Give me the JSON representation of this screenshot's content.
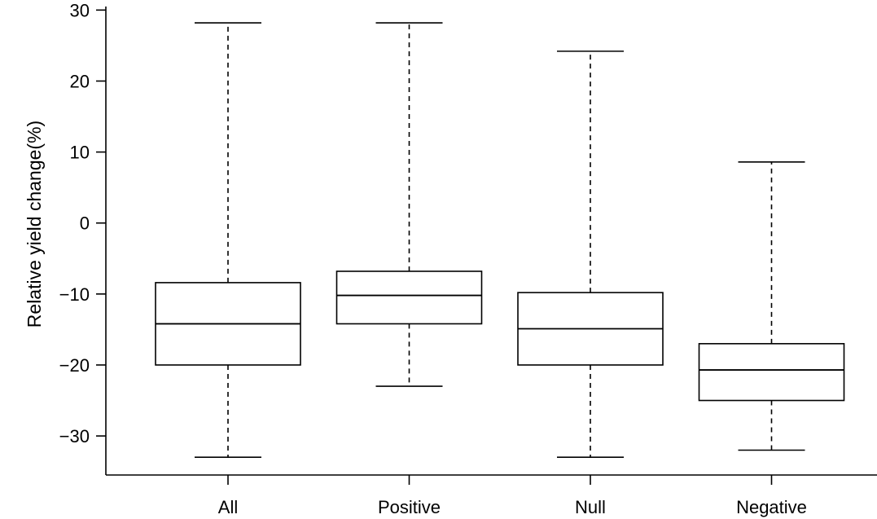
{
  "chart_data": {
    "type": "boxplot",
    "title": "",
    "xlabel": "",
    "ylabel": "Relative yield change(%)",
    "ylim": [
      -35.5,
      30.5
    ],
    "yticks": [
      -30,
      -20,
      -10,
      0,
      10,
      20,
      30
    ],
    "ytick_labels": [
      "−30",
      "−20",
      "−10",
      "0",
      "10",
      "20",
      "30"
    ],
    "grid": false,
    "categories": [
      "All",
      "Positive",
      "Null",
      "Negative"
    ],
    "boxes": [
      {
        "category": "All",
        "whisker_low": -33,
        "q1": -20,
        "median": -14.2,
        "q3": -8.4,
        "whisker_high": 28.2
      },
      {
        "category": "Positive",
        "whisker_low": -23,
        "q1": -14.2,
        "median": -10.2,
        "q3": -6.8,
        "whisker_high": 28.2
      },
      {
        "category": "Null",
        "whisker_low": -33,
        "q1": -20,
        "median": -14.9,
        "q3": -9.8,
        "whisker_high": 24.2
      },
      {
        "category": "Negative",
        "whisker_low": -32,
        "q1": -25,
        "median": -20.7,
        "q3": -17,
        "whisker_high": 8.6
      }
    ]
  }
}
